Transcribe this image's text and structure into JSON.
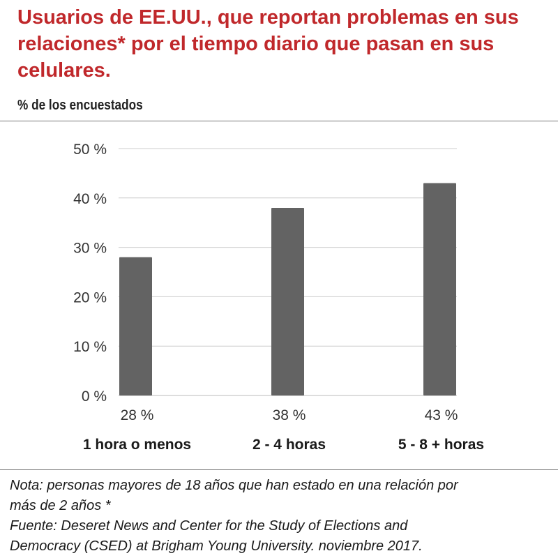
{
  "header": {
    "title": "Usuarios de EE.UU., que reportan problemas en sus relaciones* por el tiempo diario que pasan en sus celulares.",
    "subtitle": "% de los encuestados"
  },
  "chart_data": {
    "type": "bar",
    "categories": [
      "1 hora o menos",
      "2 - 4 horas",
      "5 - 8 + horas"
    ],
    "values": [
      28,
      38,
      43
    ],
    "value_labels": [
      "28 %",
      "38 %",
      "43 %"
    ],
    "ylim": [
      0,
      50
    ],
    "yticks": [
      0,
      10,
      20,
      30,
      40,
      50
    ],
    "ytick_labels": [
      "0 %",
      "10 %",
      "20 %",
      "30 %",
      "40 %",
      "50 %"
    ],
    "grid": true,
    "bar_color": "#636363",
    "grid_color": "#cccccc"
  },
  "footer": {
    "note_line1": "Nota: personas mayores de 18 años que han estado en una relación por",
    "note_line2": "más de 2 años *",
    "source_line1": "Fuente: Deseret News and Center for the Study of Elections and",
    "source_line2": "Democracy (CSED) at Brigham Young University. noviembre 2017."
  },
  "colors": {
    "title": "#c0282b",
    "divider": "#777777"
  }
}
